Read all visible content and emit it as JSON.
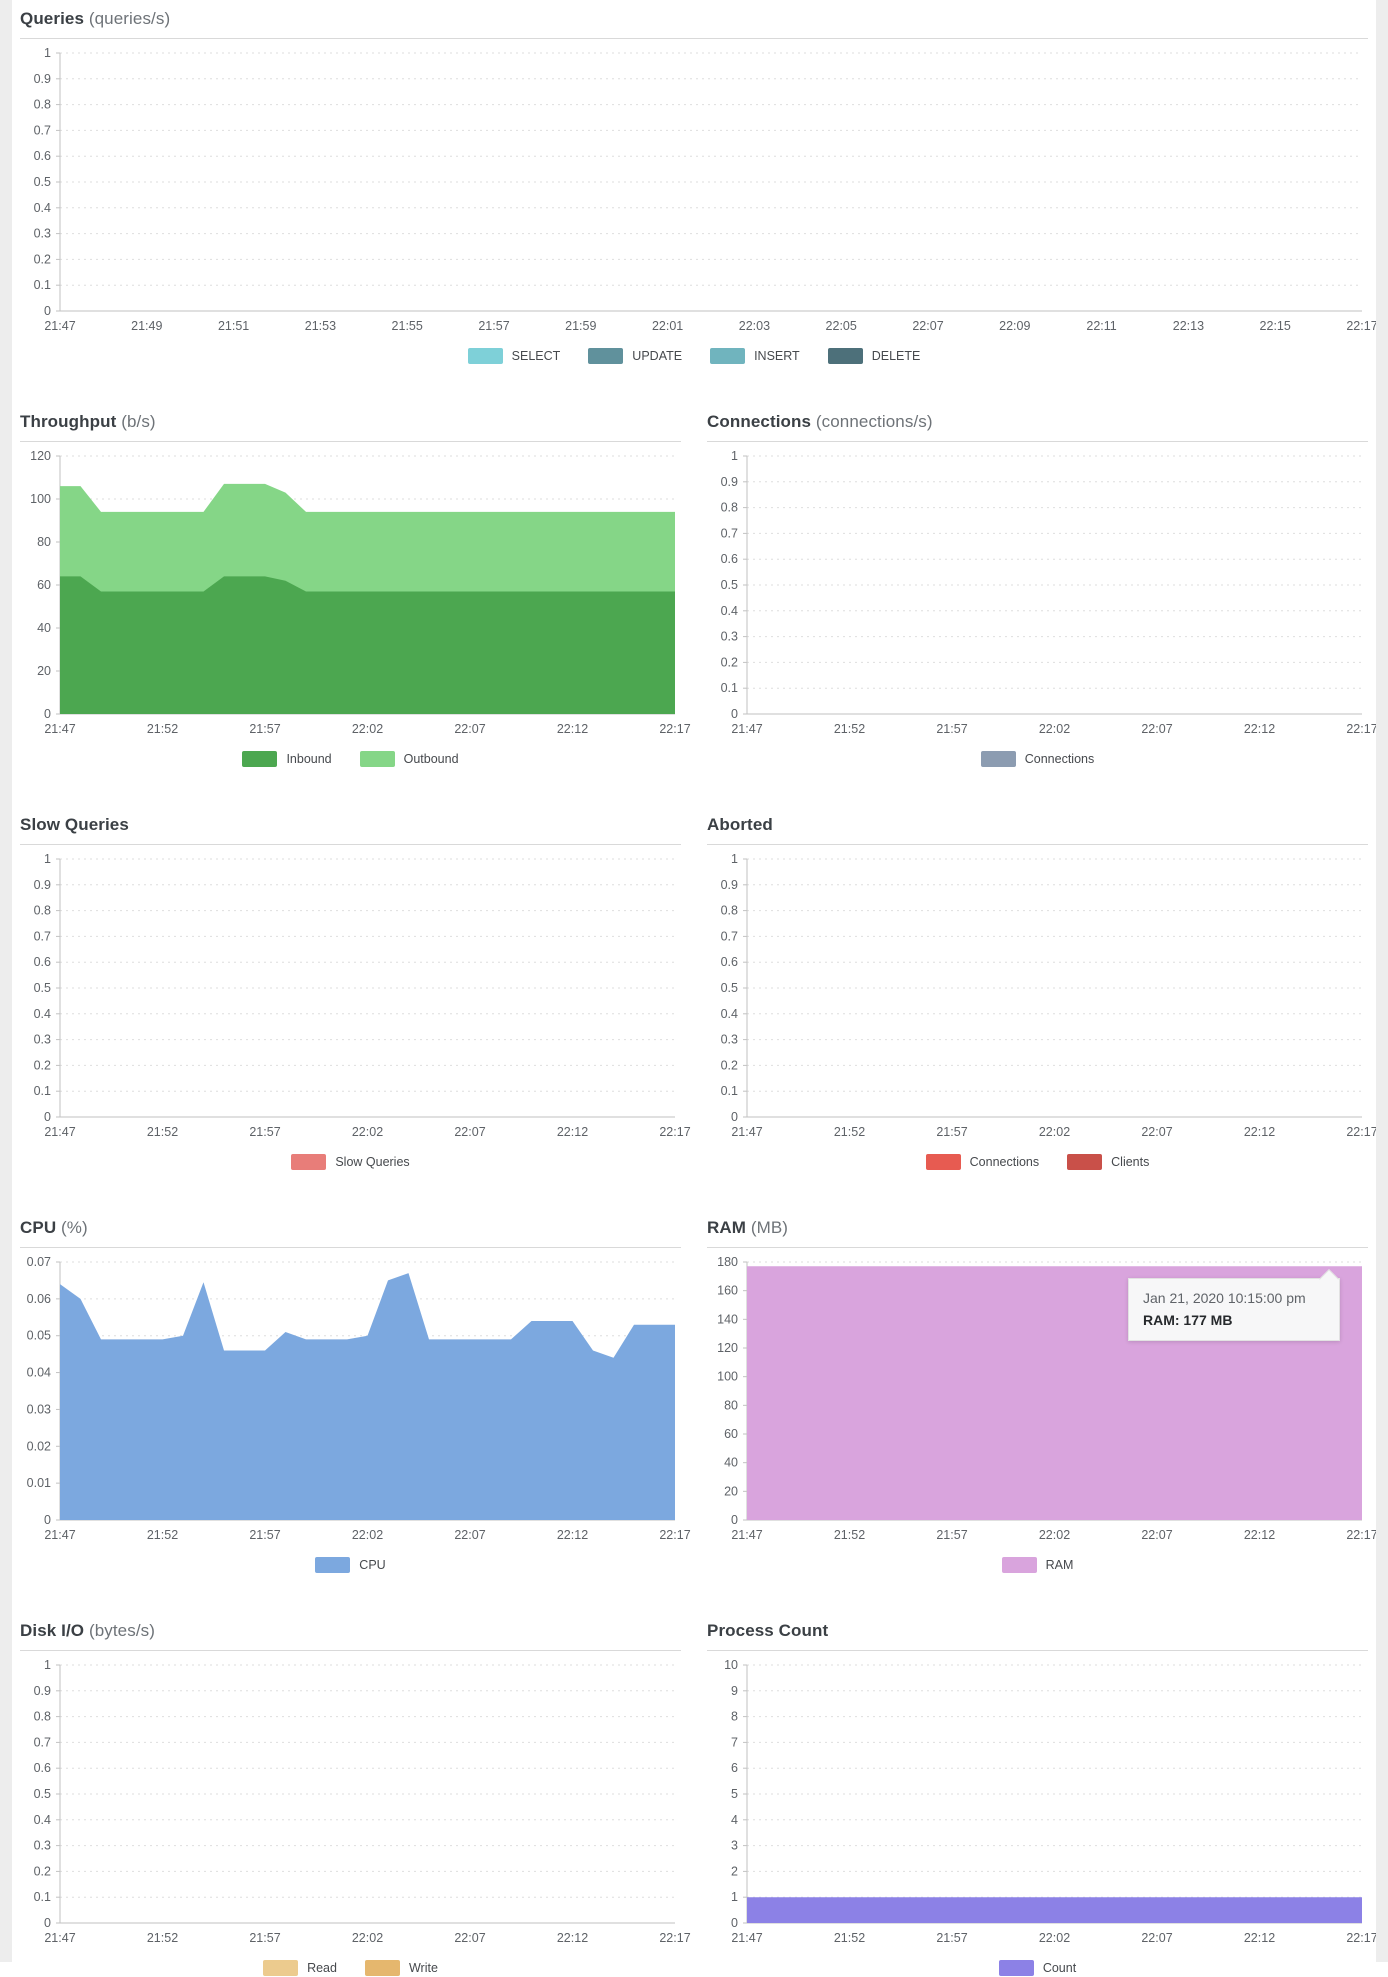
{
  "page": {
    "background_color": "#ffffff",
    "edge_strip_color": "#ededed",
    "grid_color": "#dedede",
    "axis_color": "#c2c2c2",
    "time_window": {
      "start": "21:47",
      "end": "22:17"
    }
  },
  "chart_data": [
    {
      "type": "area",
      "id": "queries",
      "title": "Queries",
      "unit": "(queries/s)",
      "ylim": [
        0,
        1
      ],
      "y_ticks": [
        "1",
        "0.9",
        "0.8",
        "0.7",
        "0.6",
        "0.5",
        "0.4",
        "0.3",
        "0.2",
        "0.1",
        "0"
      ],
      "x_ticks": [
        "21:47",
        "21:49",
        "21:51",
        "21:53",
        "21:55",
        "21:57",
        "21:59",
        "22:01",
        "22:03",
        "22:05",
        "22:07",
        "22:09",
        "22:11",
        "22:13",
        "22:15",
        "22:17"
      ],
      "grid": "dashed-horizontal",
      "legend_position": "bottom",
      "stacked": false,
      "series": [
        {
          "name": "SELECT",
          "color": "#7ed0d8",
          "values": []
        },
        {
          "name": "UPDATE",
          "color": "#60919c",
          "values": []
        },
        {
          "name": "INSERT",
          "color": "#70b4be",
          "values": []
        },
        {
          "name": "DELETE",
          "color": "#4d707a",
          "values": []
        }
      ],
      "legend": [
        {
          "label": "SELECT",
          "color": "#7ed0d8"
        },
        {
          "label": "UPDATE",
          "color": "#60919c"
        },
        {
          "label": "INSERT",
          "color": "#70b4be"
        },
        {
          "label": "DELETE",
          "color": "#4d707a"
        }
      ]
    },
    {
      "type": "area",
      "id": "throughput",
      "title": "Throughput",
      "unit": "(b/s)",
      "ylim": [
        0,
        120
      ],
      "y_ticks": [
        "120",
        "100",
        "80",
        "60",
        "40",
        "20",
        "0"
      ],
      "x_ticks": [
        "21:47",
        "21:52",
        "21:57",
        "22:02",
        "22:07",
        "22:12",
        "22:17"
      ],
      "grid": "dashed-horizontal",
      "legend_position": "bottom",
      "stacked": true,
      "series": [
        {
          "name": "Inbound",
          "color": "#4ca750",
          "values": [
            64,
            64,
            57,
            57,
            57,
            57,
            57,
            57,
            64,
            64,
            64,
            62,
            57,
            57,
            57,
            57,
            57,
            57,
            57,
            57,
            57,
            57,
            57,
            57,
            57,
            57,
            57,
            57,
            57,
            57,
            57
          ]
        },
        {
          "name": "Outbound",
          "color": "#85d687",
          "values": [
            42,
            42,
            37,
            37,
            37,
            37,
            37,
            37,
            43,
            43,
            43,
            41,
            37,
            37,
            37,
            37,
            37,
            37,
            37,
            37,
            37,
            37,
            37,
            37,
            37,
            37,
            37,
            37,
            37,
            37,
            37
          ]
        }
      ],
      "legend": [
        {
          "label": "Inbound",
          "color": "#4ca750"
        },
        {
          "label": "Outbound",
          "color": "#85d687"
        }
      ]
    },
    {
      "type": "area",
      "id": "connections",
      "title": "Connections",
      "unit": "(connections/s)",
      "ylim": [
        0,
        1
      ],
      "y_ticks": [
        "1",
        "0.9",
        "0.8",
        "0.7",
        "0.6",
        "0.5",
        "0.4",
        "0.3",
        "0.2",
        "0.1",
        "0"
      ],
      "x_ticks": [
        "21:47",
        "21:52",
        "21:57",
        "22:02",
        "22:07",
        "22:12",
        "22:17"
      ],
      "grid": "dashed-horizontal",
      "legend_position": "bottom",
      "stacked": false,
      "series": [
        {
          "name": "Connections",
          "color": "#8c9cb1",
          "values": []
        }
      ],
      "legend": [
        {
          "label": "Connections",
          "color": "#8c9cb1"
        }
      ]
    },
    {
      "type": "area",
      "id": "slow-queries",
      "title": "Slow Queries",
      "unit": "",
      "ylim": [
        0,
        1
      ],
      "y_ticks": [
        "1",
        "0.9",
        "0.8",
        "0.7",
        "0.6",
        "0.5",
        "0.4",
        "0.3",
        "0.2",
        "0.1",
        "0"
      ],
      "x_ticks": [
        "21:47",
        "21:52",
        "21:57",
        "22:02",
        "22:07",
        "22:12",
        "22:17"
      ],
      "grid": "dashed-horizontal",
      "legend_position": "bottom",
      "stacked": false,
      "series": [
        {
          "name": "Slow Queries",
          "color": "#e87d79",
          "values": []
        }
      ],
      "legend": [
        {
          "label": "Slow Queries",
          "color": "#e87d79"
        }
      ]
    },
    {
      "type": "area",
      "id": "aborted",
      "title": "Aborted",
      "unit": "",
      "ylim": [
        0,
        1
      ],
      "y_ticks": [
        "1",
        "0.9",
        "0.8",
        "0.7",
        "0.6",
        "0.5",
        "0.4",
        "0.3",
        "0.2",
        "0.1",
        "0"
      ],
      "x_ticks": [
        "21:47",
        "21:52",
        "21:57",
        "22:02",
        "22:07",
        "22:12",
        "22:17"
      ],
      "grid": "dashed-horizontal",
      "legend_position": "bottom",
      "stacked": false,
      "series": [
        {
          "name": "Connections",
          "color": "#e75b51",
          "values": []
        },
        {
          "name": "Clients",
          "color": "#c95049",
          "values": []
        }
      ],
      "legend": [
        {
          "label": "Connections",
          "color": "#e75b51"
        },
        {
          "label": "Clients",
          "color": "#c95049"
        }
      ]
    },
    {
      "type": "area",
      "id": "cpu",
      "title": "CPU",
      "unit": "(%)",
      "ylim": [
        0,
        0.07
      ],
      "y_ticks": [
        "0.07",
        "0.06",
        "0.05",
        "0.04",
        "0.03",
        "0.02",
        "0.01",
        "0"
      ],
      "x_ticks": [
        "21:47",
        "21:52",
        "21:57",
        "22:02",
        "22:07",
        "22:12",
        "22:17"
      ],
      "grid": "dashed-horizontal",
      "legend_position": "bottom",
      "stacked": false,
      "series": [
        {
          "name": "CPU",
          "color": "#7ca8df",
          "values": [
            0.064,
            0.06,
            0.049,
            0.049,
            0.049,
            0.049,
            0.05,
            0.0645,
            0.046,
            0.046,
            0.046,
            0.051,
            0.049,
            0.049,
            0.049,
            0.05,
            0.065,
            0.067,
            0.049,
            0.049,
            0.049,
            0.049,
            0.049,
            0.054,
            0.054,
            0.054,
            0.046,
            0.044,
            0.053,
            0.053,
            0.053
          ]
        }
      ],
      "legend": [
        {
          "label": "CPU",
          "color": "#7ca8df"
        }
      ]
    },
    {
      "type": "area",
      "id": "ram",
      "title": "RAM",
      "unit": "(MB)",
      "ylim": [
        0,
        180
      ],
      "y_ticks": [
        "180",
        "160",
        "140",
        "120",
        "100",
        "80",
        "60",
        "40",
        "20",
        "0"
      ],
      "x_ticks": [
        "21:47",
        "21:52",
        "21:57",
        "22:02",
        "22:07",
        "22:12",
        "22:17"
      ],
      "grid": "dashed-horizontal",
      "legend_position": "bottom",
      "stacked": false,
      "series": [
        {
          "name": "RAM",
          "color": "#d9a4dd",
          "values": [
            177,
            177,
            177,
            177,
            177,
            177,
            177,
            177,
            177,
            177,
            177,
            177,
            177,
            177,
            177,
            177,
            177,
            177,
            177,
            177,
            177,
            177,
            177,
            177,
            177,
            177,
            177,
            177,
            177,
            177,
            177
          ]
        }
      ],
      "legend": [
        {
          "label": "RAM",
          "color": "#d9a4dd"
        }
      ],
      "tooltip": {
        "date": "Jan 21, 2020 10:15:00 pm",
        "text": "RAM: 177 MB"
      }
    },
    {
      "type": "area",
      "id": "disk-io",
      "title": "Disk I/O",
      "unit": "(bytes/s)",
      "ylim": [
        0,
        1
      ],
      "y_ticks": [
        "1",
        "0.9",
        "0.8",
        "0.7",
        "0.6",
        "0.5",
        "0.4",
        "0.3",
        "0.2",
        "0.1",
        "0"
      ],
      "x_ticks": [
        "21:47",
        "21:52",
        "21:57",
        "22:02",
        "22:07",
        "22:12",
        "22:17"
      ],
      "grid": "dashed-horizontal",
      "legend_position": "bottom",
      "stacked": false,
      "series": [
        {
          "name": "Read",
          "color": "#eccb8e",
          "values": []
        },
        {
          "name": "Write",
          "color": "#e5b76e",
          "values": []
        }
      ],
      "legend": [
        {
          "label": "Read",
          "color": "#eccb8e"
        },
        {
          "label": "Write",
          "color": "#e5b76e"
        }
      ]
    },
    {
      "type": "area",
      "id": "process-count",
      "title": "Process Count",
      "unit": "",
      "ylim": [
        0,
        10
      ],
      "y_ticks": [
        "10",
        "9",
        "8",
        "7",
        "6",
        "5",
        "4",
        "3",
        "2",
        "1",
        "0"
      ],
      "x_ticks": [
        "21:47",
        "21:52",
        "21:57",
        "22:02",
        "22:07",
        "22:12",
        "22:17"
      ],
      "grid": "dashed-horizontal",
      "legend_position": "bottom",
      "stacked": false,
      "series": [
        {
          "name": "Count",
          "color": "#8c81e6",
          "values": [
            1,
            1,
            1,
            1,
            1,
            1,
            1,
            1,
            1,
            1,
            1,
            1,
            1,
            1,
            1,
            1,
            1,
            1,
            1,
            1,
            1,
            1,
            1,
            1,
            1,
            1,
            1,
            1,
            1,
            1,
            1
          ]
        }
      ],
      "legend": [
        {
          "label": "Count",
          "color": "#8c81e6"
        }
      ]
    }
  ]
}
